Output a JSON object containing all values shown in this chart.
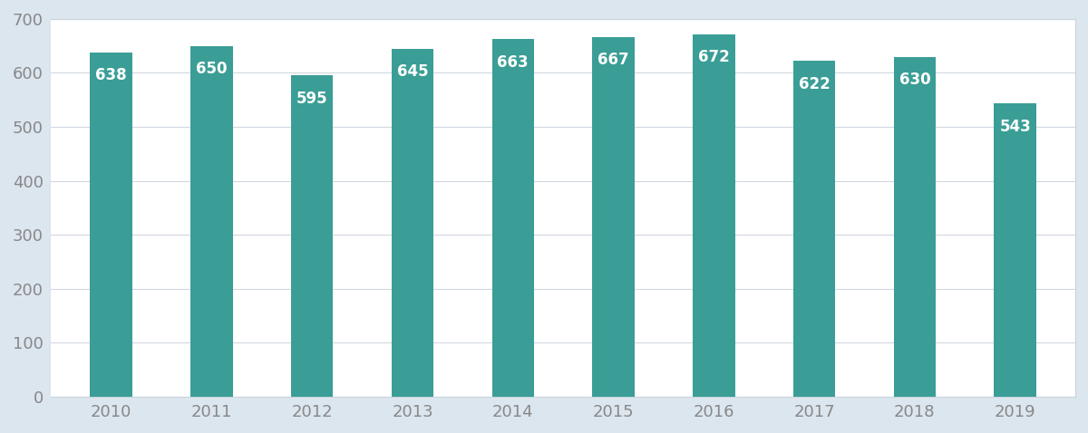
{
  "years": [
    "2010",
    "2011",
    "2012",
    "2013",
    "2014",
    "2015",
    "2016",
    "2017",
    "2018",
    "2019"
  ],
  "values": [
    638,
    650,
    595,
    645,
    663,
    667,
    672,
    622,
    630,
    543
  ],
  "bar_color": "#3a9e96",
  "label_color": "#ffffff",
  "label_fontsize": 12,
  "tick_label_color": "#888888",
  "tick_fontsize": 13,
  "ylim": [
    0,
    700
  ],
  "yticks": [
    0,
    100,
    200,
    300,
    400,
    500,
    600,
    700
  ],
  "grid_color": "#d0d8e0",
  "figure_background_color": "#dce6ef",
  "plot_background_color": "#ffffff",
  "bar_width": 0.42,
  "spine_color": "#c8d4de"
}
